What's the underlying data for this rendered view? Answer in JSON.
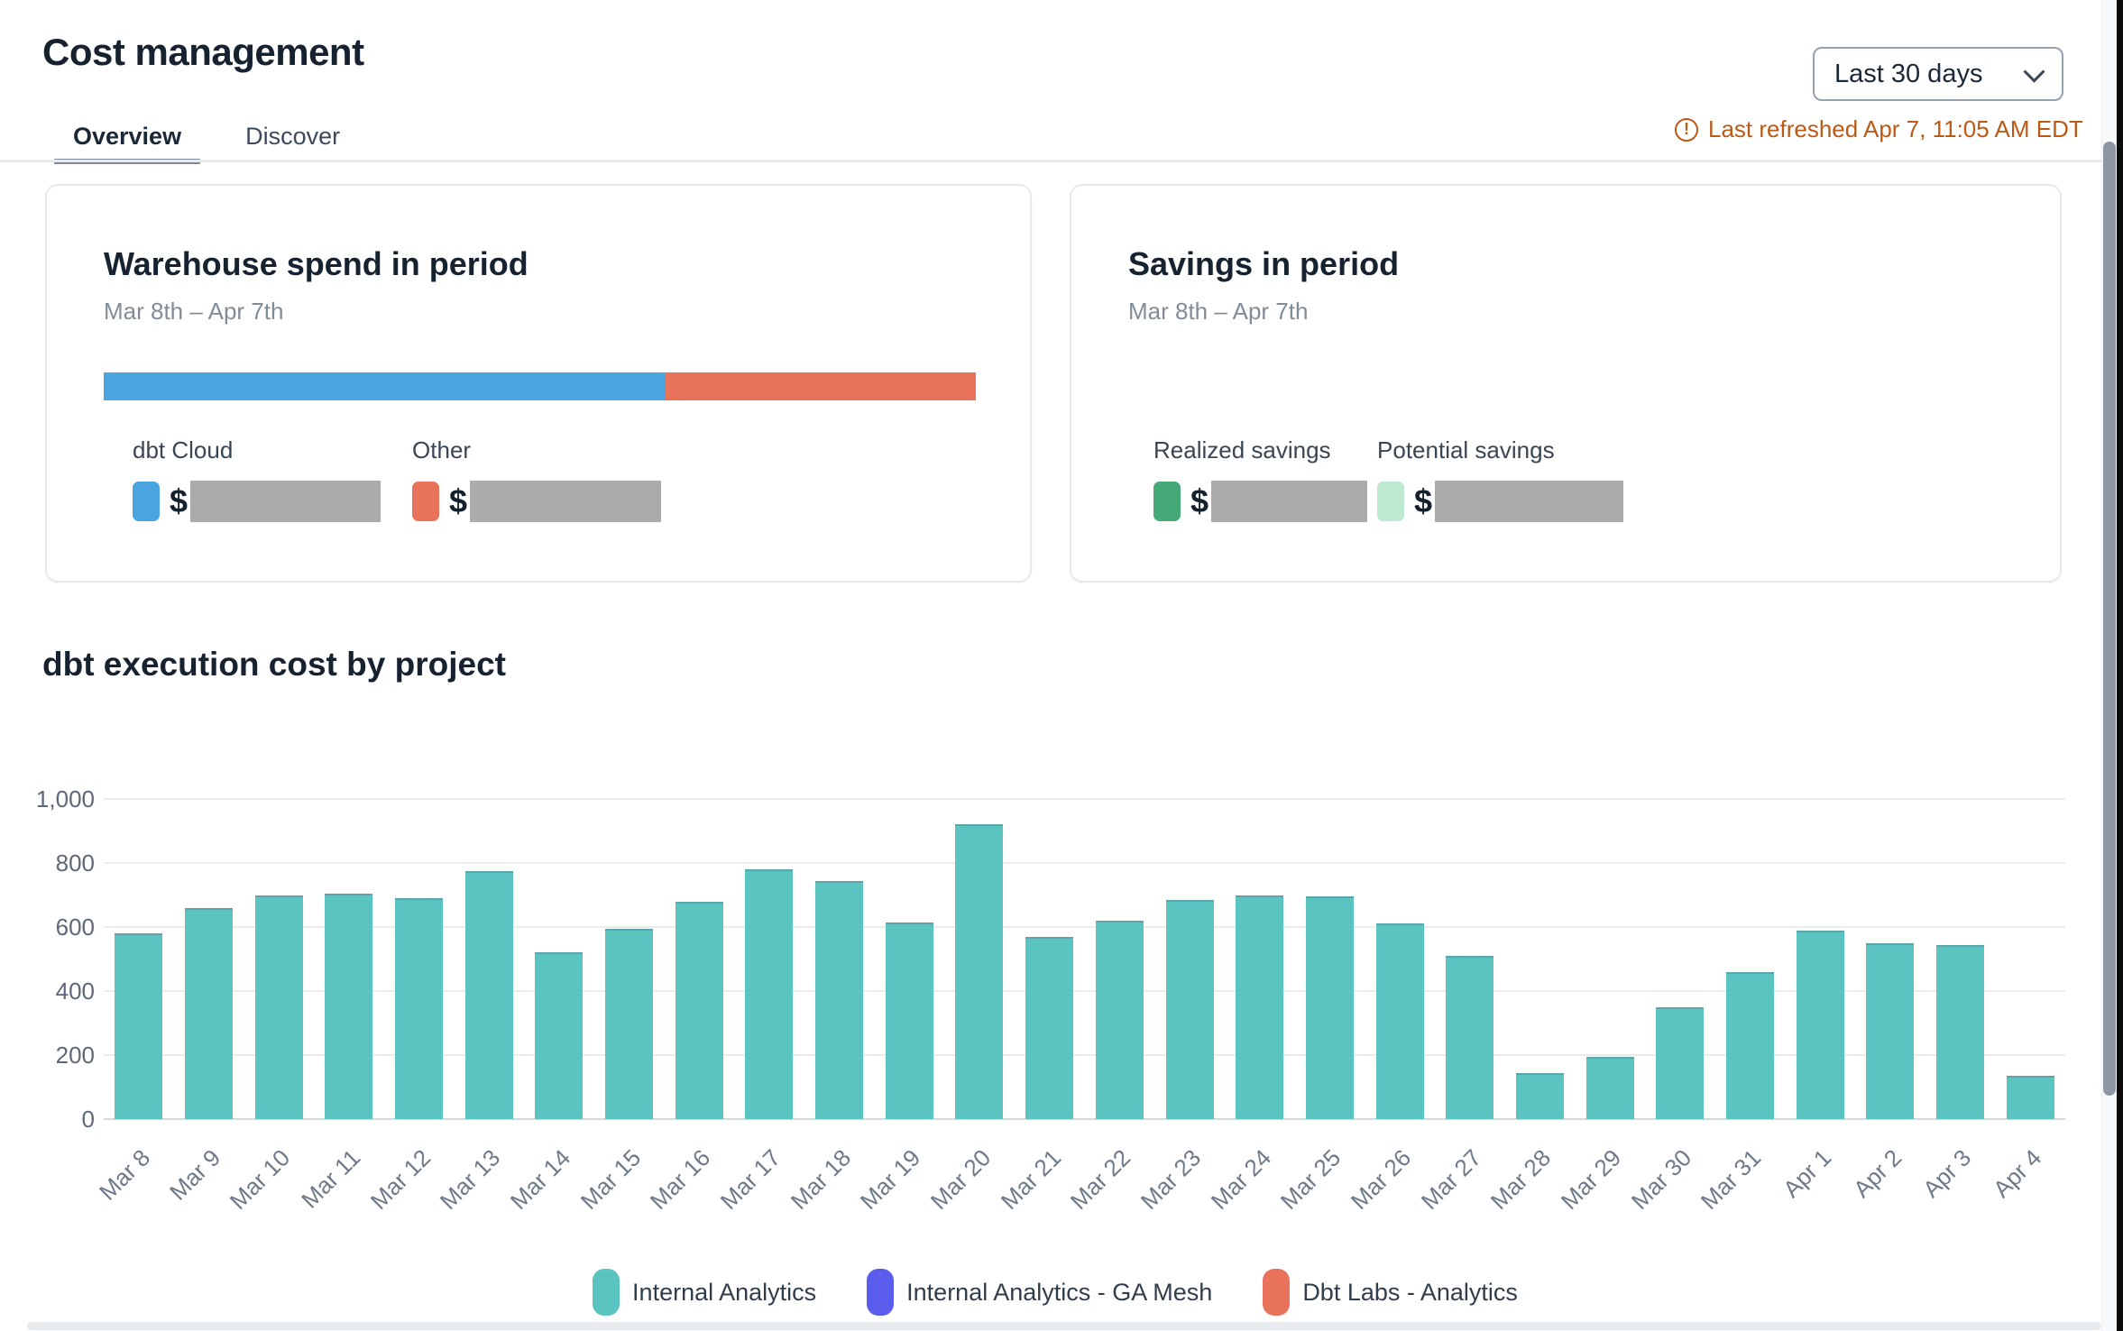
{
  "header": {
    "title": "Cost management",
    "tabs": [
      {
        "label": "Overview",
        "active": true
      },
      {
        "label": "Discover",
        "active": false
      }
    ],
    "range_selector": {
      "value": "Last 30 days"
    },
    "warning_glyph": "!",
    "last_refreshed": "Last refreshed Apr 7, 11:05 AM EDT",
    "refresh_color": "#bb5a17"
  },
  "cards": {
    "warehouse_spend": {
      "title": "Warehouse spend in period",
      "subtitle": "Mar 8th – Apr 7th",
      "bar_segments": [
        {
          "name": "dbt Cloud",
          "color": "#4aa4e0",
          "pct": 64.4
        },
        {
          "name": "Other",
          "color": "#e8735a",
          "pct": 35.6
        }
      ],
      "metrics": [
        {
          "label": "dbt Cloud",
          "swatch_color": "#4aa4e0",
          "currency": "$",
          "value_redacted": true,
          "redacted_width": 211
        },
        {
          "label": "Other",
          "swatch_color": "#e8735a",
          "currency": "$",
          "value_redacted": true,
          "redacted_width": 212
        }
      ]
    },
    "savings": {
      "title": "Savings in period",
      "subtitle": "Mar 8th – Apr 7th",
      "metrics": [
        {
          "label": "Realized savings",
          "swatch_color": "#45a877",
          "currency": "$",
          "value_redacted": true,
          "redacted_width": 173
        },
        {
          "label": "Potential savings",
          "swatch_color": "#bfe9d1",
          "currency": "$",
          "value_redacted": true,
          "redacted_width": 209
        }
      ]
    }
  },
  "chart_data": {
    "type": "bar",
    "title": "dbt execution cost by project",
    "categories": [
      "Mar 8",
      "Mar 9",
      "Mar 10",
      "Mar 11",
      "Mar 12",
      "Mar 13",
      "Mar 14",
      "Mar 15",
      "Mar 16",
      "Mar 17",
      "Mar 18",
      "Mar 19",
      "Mar 20",
      "Mar 21",
      "Mar 22",
      "Mar 23",
      "Mar 24",
      "Mar 25",
      "Mar 26",
      "Mar 27",
      "Mar 28",
      "Mar 29",
      "Mar 30",
      "Mar 31",
      "Apr 1",
      "Apr 2",
      "Apr 3",
      "Apr 4"
    ],
    "values": [
      580,
      660,
      700,
      705,
      690,
      775,
      520,
      595,
      680,
      780,
      745,
      615,
      920,
      570,
      620,
      685,
      700,
      695,
      610,
      510,
      145,
      195,
      350,
      460,
      590,
      550,
      545,
      135
    ],
    "series_name": "Internal Analytics",
    "bar_color": "#5cc4c0",
    "xlabel": "",
    "ylabel": "",
    "ylim": [
      0,
      1000
    ],
    "yticks": [
      0,
      200,
      400,
      600,
      800,
      1000
    ],
    "y_tick_labels": [
      "0",
      "200",
      "400",
      "600",
      "800",
      "1,000"
    ],
    "grid": true,
    "legend_position": "bottom",
    "legend": [
      {
        "label": "Internal Analytics",
        "color": "#5cc4c0"
      },
      {
        "label": "Internal Analytics - GA Mesh",
        "color": "#5a5cec"
      },
      {
        "label": "Dbt Labs - Analytics",
        "color": "#e8735a"
      }
    ]
  }
}
